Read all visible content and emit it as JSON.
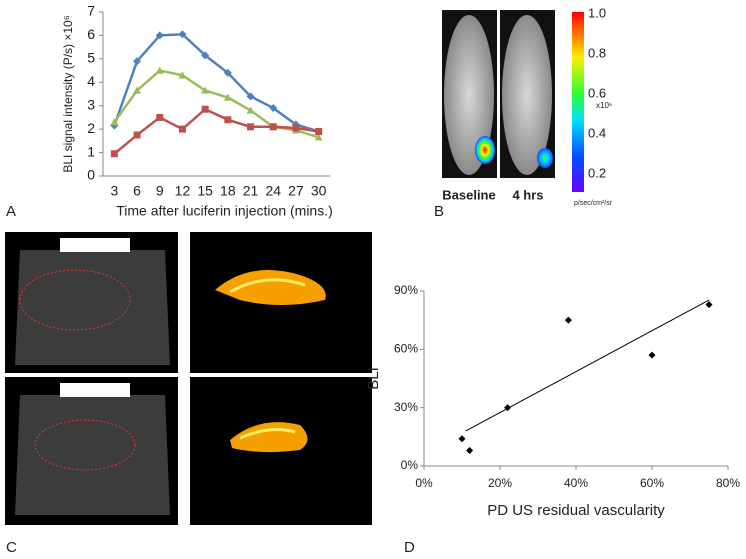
{
  "chart_data": [
    {
      "type": "line",
      "categories": [
        "3",
        "6",
        "9",
        "12",
        "15",
        "18",
        "21",
        "24",
        "27",
        "30"
      ],
      "series": [
        {
          "color": "#4f81bd",
          "marker": "diamond",
          "values": [
            2.15,
            4.9,
            6.0,
            6.05,
            5.15,
            4.4,
            3.4,
            2.9,
            2.2,
            1.9
          ]
        },
        {
          "color": "#9bbb59",
          "marker": "triangle",
          "values": [
            2.3,
            3.65,
            4.5,
            4.3,
            3.65,
            3.35,
            2.8,
            2.1,
            1.95,
            1.65
          ]
        },
        {
          "color": "#c0504d",
          "marker": "square",
          "values": [
            0.95,
            1.75,
            2.5,
            2.0,
            2.85,
            2.4,
            2.1,
            2.1,
            2.05,
            1.9
          ]
        }
      ],
      "ylim": [
        0,
        7
      ],
      "yticks": [
        0,
        1,
        2,
        3,
        4,
        5,
        6,
        7
      ],
      "y_label": "BLI signal intensity (P/s) ×10⁶",
      "x_label": "Time after luciferin injection (mins.)"
    },
    {
      "type": "scatter",
      "x": [
        10,
        12,
        22,
        38,
        60,
        75
      ],
      "values": [
        14,
        8,
        30,
        75,
        57,
        83
      ],
      "color": "#000000",
      "trendline": "linear",
      "xlim": [
        0,
        80
      ],
      "xticks": [
        {
          "value": 0,
          "label": "0%"
        },
        {
          "value": 20,
          "label": "20%"
        },
        {
          "value": 40,
          "label": "40%"
        },
        {
          "value": 60,
          "label": "60%"
        },
        {
          "value": 80,
          "label": "80%"
        }
      ],
      "ylim": [
        0,
        90
      ],
      "yticks": [
        {
          "value": 0,
          "label": "0%"
        },
        {
          "value": 30,
          "label": "30%"
        },
        {
          "value": 60,
          "label": "60%"
        },
        {
          "value": 90,
          "label": "90%"
        }
      ],
      "y_label": "BLI",
      "x_label": "PD US residual vascularity"
    }
  ],
  "panel_letters": [
    "A",
    "B",
    "C",
    "D"
  ],
  "panel_b": {
    "image_labels": [
      "Baseline",
      "4 hrs"
    ],
    "colorbar_labels": [
      "1.0",
      "0.8",
      "0.6",
      "0.4",
      "0.2"
    ],
    "colorbar_scale": "x10⁶",
    "colorbar_unit": "p/sec/cm²/sr"
  }
}
